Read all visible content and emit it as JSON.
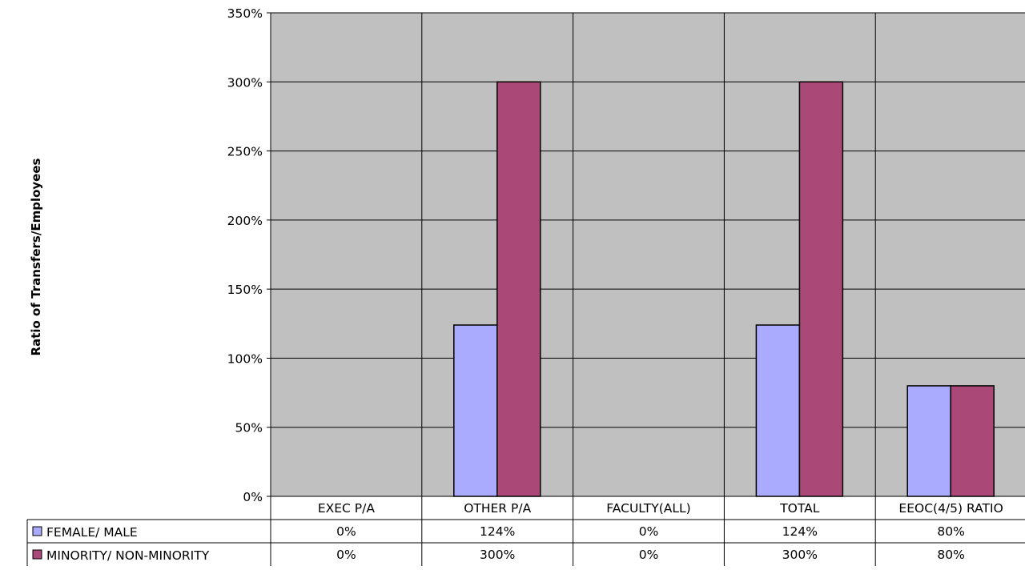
{
  "chart_data": {
    "type": "bar",
    "ylabel": "Ratio of Transfers/Employees",
    "categories": [
      "EXEC P/A",
      "OTHER P/A",
      "FACULTY(ALL)",
      "TOTAL",
      "EEOC(4/5) RATIO"
    ],
    "series": [
      {
        "name": "FEMALE/ MALE",
        "values": [
          0,
          124,
          0,
          124,
          80
        ],
        "display": [
          "0%",
          "124%",
          "0%",
          "124%",
          "80%"
        ],
        "color": "#aaaaff"
      },
      {
        "name": "MINORITY/ NON-MINORITY",
        "values": [
          0,
          300,
          0,
          300,
          80
        ],
        "display": [
          "0%",
          "300%",
          "0%",
          "300%",
          "80%"
        ],
        "color": "#aa4878"
      }
    ],
    "ylim": [
      0,
      350
    ],
    "yticks": [
      0,
      50,
      100,
      150,
      200,
      250,
      300,
      350
    ],
    "ytick_labels": [
      "0%",
      "50%",
      "100%",
      "150%",
      "200%",
      "250%",
      "300%",
      "350%"
    ],
    "plot_background": "#c0c0c0",
    "grid": true,
    "legend": "data-table"
  }
}
